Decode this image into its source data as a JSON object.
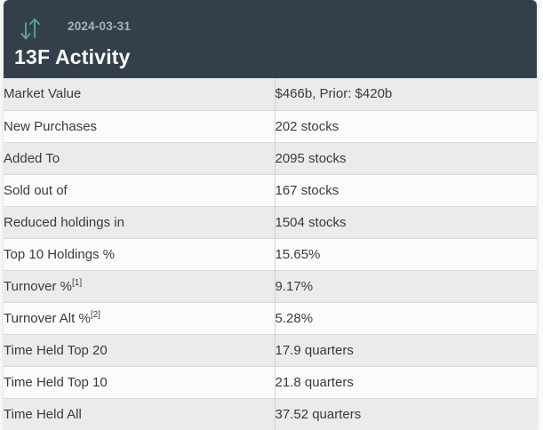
{
  "header": {
    "icon": "up-down-arrows-icon",
    "date": "2024-03-31",
    "title": "13F Activity"
  },
  "colors": {
    "header_bg": "#333F4B",
    "icon_teal": "#55A28E",
    "date_text": "#A9B0B6",
    "title_text": "#FCFCFC",
    "row_gray": "#EBEBEB",
    "row_white": "#FBFBFB",
    "row_border": "#D9D9D9",
    "column_divider": "#D2D2D2",
    "row_text": "#3B3B3B"
  },
  "table": {
    "rows": [
      {
        "label": "Market Value",
        "value": "$466b, Prior: $420b"
      },
      {
        "label": "New Purchases",
        "value": "202 stocks"
      },
      {
        "label": "Added To",
        "value": "2095 stocks"
      },
      {
        "label": "Sold out of",
        "value": "167 stocks"
      },
      {
        "label": "Reduced holdings in",
        "value": "1504 stocks"
      },
      {
        "label": "Top 10 Holdings %",
        "value": "15.65%"
      },
      {
        "label": "Turnover %",
        "superscript": "[1]",
        "value": "9.17%"
      },
      {
        "label": "Turnover Alt %",
        "superscript": "[2]",
        "value": "5.28%"
      },
      {
        "label": "Time Held Top 20",
        "value": "17.9 quarters"
      },
      {
        "label": "Time Held Top 10",
        "value": "21.8 quarters"
      },
      {
        "label": "Time Held All",
        "value": "37.52 quarters"
      }
    ]
  }
}
